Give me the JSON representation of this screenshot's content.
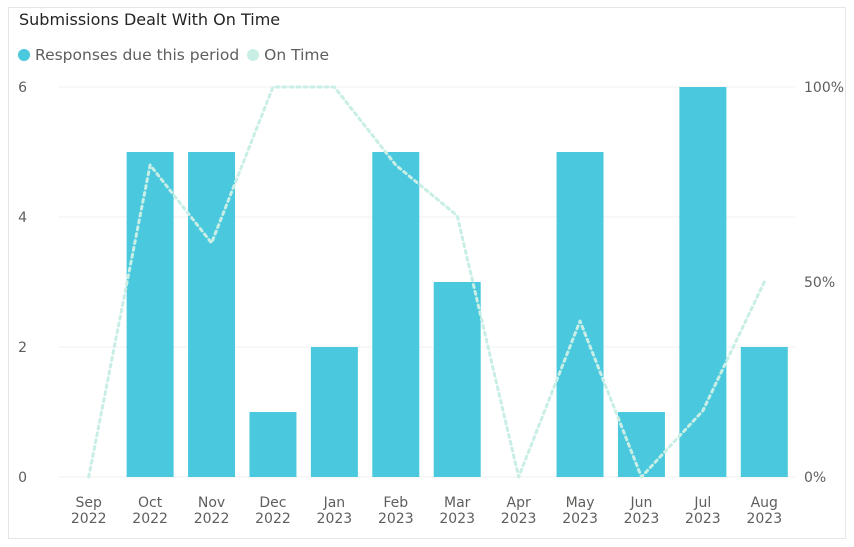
{
  "title": "Submissions Dealt With On Time",
  "legend": [
    {
      "label": "Responses due this period",
      "color": "#4ac8de"
    },
    {
      "label": "On Time",
      "color": "#c8eee6"
    }
  ],
  "chart_data": {
    "type": "bar",
    "title": "Submissions Dealt With On Time",
    "categories": [
      [
        "Sep",
        "2022"
      ],
      [
        "Oct",
        "2022"
      ],
      [
        "Nov",
        "2022"
      ],
      [
        "Dec",
        "2022"
      ],
      [
        "Jan",
        "2023"
      ],
      [
        "Feb",
        "2023"
      ],
      [
        "Mar",
        "2023"
      ],
      [
        "Apr",
        "2023"
      ],
      [
        "May",
        "2023"
      ],
      [
        "Jun",
        "2023"
      ],
      [
        "Jul",
        "2023"
      ],
      [
        "Aug",
        "2023"
      ]
    ],
    "series": [
      {
        "name": "Responses due this period",
        "type": "bar",
        "axis": "left",
        "color": "#4ac8de",
        "values": [
          0,
          5,
          5,
          1,
          2,
          5,
          3,
          0,
          5,
          1,
          6,
          2
        ]
      },
      {
        "name": "On Time",
        "type": "line",
        "axis": "right",
        "style": "dotted",
        "color": "#c8eee6",
        "values": [
          0,
          80,
          60,
          100,
          100,
          80,
          67,
          0,
          40,
          0,
          17,
          50
        ]
      }
    ],
    "y_left": {
      "ticks": [
        "0",
        "2",
        "4",
        "6"
      ],
      "range": [
        0,
        6
      ]
    },
    "y_right": {
      "ticks": [
        "0%",
        "50%",
        "100%"
      ],
      "range": [
        0,
        100
      ]
    },
    "grid": true
  }
}
